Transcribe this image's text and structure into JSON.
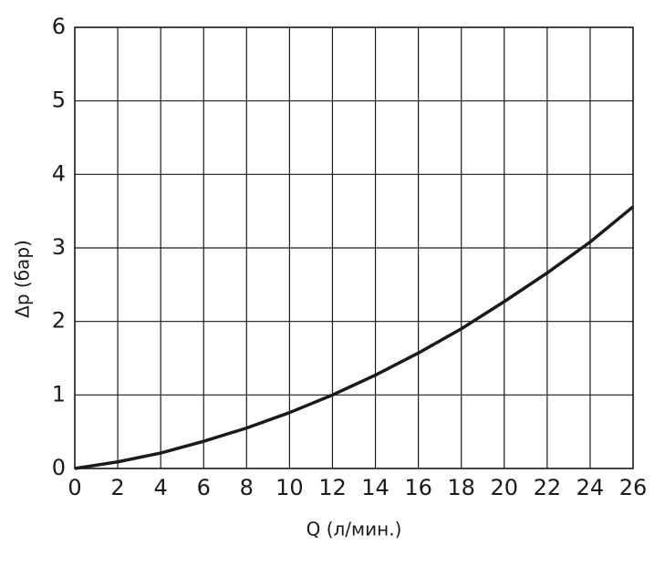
{
  "chart_data": {
    "type": "line",
    "x_label": "Q (л/мин.)",
    "y_label": "Δp (бар)",
    "x": [
      0,
      2,
      4,
      6,
      8,
      10,
      12,
      14,
      16,
      18,
      20,
      22,
      24,
      26
    ],
    "series": [
      {
        "color": "#1a1a1a",
        "values": [
          0,
          0.09,
          0.21,
          0.37,
          0.55,
          0.76,
          1.0,
          1.27,
          1.57,
          1.9,
          2.27,
          2.66,
          3.08,
          3.56
        ]
      }
    ],
    "xlim": [
      0,
      26
    ],
    "xticks": [
      0,
      2,
      4,
      6,
      8,
      10,
      12,
      14,
      16,
      18,
      20,
      22,
      24,
      26
    ],
    "ylim": [
      0,
      6
    ],
    "yticks": [
      0,
      1,
      2,
      3,
      4,
      5,
      6
    ],
    "grid": true
  }
}
